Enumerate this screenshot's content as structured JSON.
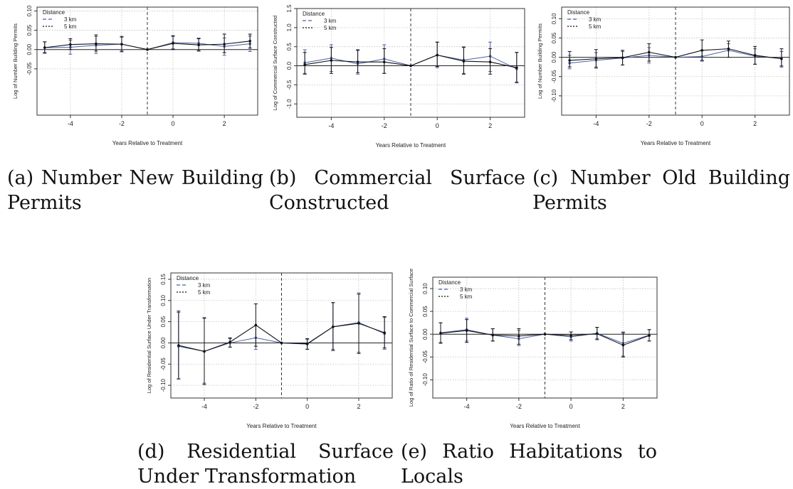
{
  "colors": {
    "three_km": "#4a5fa8",
    "five_km": "#111111",
    "grid": "#bfbfbf"
  },
  "chart_data": [
    {
      "type": "line",
      "caption": "(a) Number New Building Permits",
      "ylabel": "Log of Number Building Permits",
      "xlabel": "Years Relative to Treatment",
      "legend_title": "Distance",
      "legend_position": "top-left",
      "xlim": [
        -5.3,
        3.3
      ],
      "ylim": [
        -0.17,
        0.11
      ],
      "x_ticks": [
        -4,
        -2,
        0,
        2
      ],
      "y_ticks": [
        -0.05,
        0.0,
        0.05,
        0.1
      ],
      "y_tick_labels": [
        "-0.05",
        "0.00",
        "0.05",
        "0.10"
      ],
      "treatment_line": -1,
      "grid": true,
      "x": [
        -5,
        -4,
        -3,
        -2,
        -1,
        0,
        1,
        2,
        3
      ],
      "series": [
        {
          "name": "3 km",
          "values": [
            0.005,
            0.006,
            0.011,
            0.014,
            0,
            0.018,
            0.016,
            0.008,
            0.015
          ],
          "lower": [
            -0.01,
            -0.012,
            -0.01,
            -0.006,
            0,
            0.002,
            -0.002,
            -0.015,
            -0.005
          ],
          "upper": [
            0.02,
            0.024,
            0.034,
            0.032,
            0,
            0.034,
            0.03,
            0.03,
            0.035
          ]
        },
        {
          "name": "5 km",
          "values": [
            0.005,
            0.013,
            0.015,
            0.014,
            0,
            0.016,
            0.012,
            0.014,
            0.022
          ],
          "lower": [
            -0.008,
            0.0,
            -0.004,
            -0.004,
            0,
            0.0,
            -0.004,
            -0.008,
            0.004
          ],
          "upper": [
            0.02,
            0.028,
            0.038,
            0.034,
            0,
            0.036,
            0.028,
            0.04,
            0.04
          ]
        }
      ]
    },
    {
      "type": "line",
      "caption": "(b) Commercial Surface Constructed",
      "ylabel": "Log of Commercial Surface Constructed",
      "xlabel": "Years Relative to Treatment",
      "legend_title": "Distance",
      "legend_position": "top-left",
      "xlim": [
        -5.3,
        3.3
      ],
      "ylim": [
        -1.35,
        1.5
      ],
      "x_ticks": [
        -4,
        -2,
        0,
        2
      ],
      "y_ticks": [
        -1.0,
        -0.5,
        0.0,
        0.5,
        1.0,
        1.5
      ],
      "y_tick_labels": [
        "-1.0",
        "-0.5",
        "0.0",
        "0.5",
        "1.0",
        "1.5"
      ],
      "treatment_line": -1,
      "grid": true,
      "x": [
        -5,
        -4,
        -3,
        -2,
        -1,
        0,
        1,
        2,
        3
      ],
      "series": [
        {
          "name": "3 km",
          "values": [
            0.08,
            0.2,
            0.05,
            0.18,
            0,
            0.28,
            0.15,
            0.25,
            -0.08
          ],
          "lower": [
            -0.2,
            -0.15,
            -0.22,
            -0.2,
            0,
            -0.05,
            -0.2,
            -0.15,
            -0.45
          ],
          "upper": [
            0.42,
            0.55,
            0.4,
            0.55,
            0,
            0.62,
            0.5,
            0.62,
            0.35
          ]
        },
        {
          "name": "5 km",
          "values": [
            0.03,
            0.14,
            0.1,
            0.1,
            0,
            0.28,
            0.12,
            0.1,
            -0.05
          ],
          "lower": [
            -0.22,
            -0.2,
            -0.18,
            -0.2,
            0,
            -0.02,
            -0.22,
            -0.22,
            -0.43
          ],
          "upper": [
            0.35,
            0.48,
            0.42,
            0.45,
            0,
            0.62,
            0.48,
            0.45,
            0.35
          ]
        }
      ]
    },
    {
      "type": "line",
      "caption": "(c) Number Old Building Permits",
      "ylabel": "Log of Number Building Permits",
      "xlabel": "Years Relative to Treatment",
      "legend_title": "Distance",
      "legend_position": "top-left",
      "xlim": [
        -5.3,
        3.3
      ],
      "ylim": [
        -0.15,
        0.13
      ],
      "x_ticks": [
        -4,
        -2,
        0,
        2
      ],
      "y_ticks": [
        -0.1,
        -0.05,
        0.0,
        0.05,
        0.1
      ],
      "y_tick_labels": [
        "-0.10",
        "-0.05",
        "0.00",
        "0.05",
        "0.10"
      ],
      "treatment_line": -1,
      "grid": true,
      "x": [
        -5,
        -4,
        -3,
        -2,
        -1,
        0,
        1,
        2,
        3
      ],
      "series": [
        {
          "name": "3 km",
          "values": [
            -0.015,
            -0.008,
            -0.002,
            0.005,
            0,
            0.002,
            0.018,
            0.003,
            -0.003
          ],
          "lower": [
            -0.03,
            -0.025,
            -0.02,
            -0.015,
            0,
            -0.01,
            0.0,
            -0.018,
            -0.022
          ],
          "upper": [
            0.005,
            0.012,
            0.015,
            0.025,
            0,
            0.018,
            0.035,
            0.022,
            0.015
          ]
        },
        {
          "name": "5 km",
          "values": [
            -0.008,
            -0.004,
            -0.001,
            0.013,
            0,
            0.018,
            0.022,
            0.005,
            -0.004
          ],
          "lower": [
            -0.025,
            -0.028,
            -0.02,
            -0.01,
            0,
            -0.008,
            0.0,
            -0.018,
            -0.025
          ],
          "upper": [
            0.015,
            0.02,
            0.018,
            0.035,
            0,
            0.045,
            0.042,
            0.028,
            0.022
          ]
        }
      ]
    },
    {
      "type": "line",
      "caption": "(d) Residential Surface Under Transformation",
      "ylabel": "Log of Residential Surface Under Transformation",
      "xlabel": "Years Relative to Treatment",
      "legend_title": "Distance",
      "legend_position": "top-left",
      "xlim": [
        -5.3,
        3.3
      ],
      "ylim": [
        -0.13,
        0.165
      ],
      "x_ticks": [
        -4,
        -2,
        0,
        2
      ],
      "y_ticks": [
        -0.1,
        -0.05,
        0.0,
        0.05,
        0.1,
        0.15
      ],
      "y_tick_labels": [
        "-0.10",
        "-0.05",
        "0.00",
        "0.05",
        "0.10",
        "0.15"
      ],
      "treatment_line": -1,
      "grid": true,
      "x": [
        -5,
        -4,
        -3,
        -2,
        -1,
        0,
        1,
        2,
        3
      ],
      "series": [
        {
          "name": "3 km",
          "values": [
            -0.008,
            -0.02,
            0.0,
            0.012,
            0,
            -0.003,
            0.038,
            0.048,
            0.022
          ],
          "lower": [
            -0.085,
            -0.095,
            -0.01,
            -0.015,
            0,
            -0.015,
            -0.015,
            -0.022,
            -0.015
          ],
          "upper": [
            0.072,
            0.06,
            0.01,
            0.04,
            0,
            0.008,
            0.095,
            0.118,
            0.06
          ]
        },
        {
          "name": "5 km",
          "values": [
            -0.006,
            -0.02,
            0.002,
            0.042,
            0,
            -0.002,
            0.038,
            0.046,
            0.024
          ],
          "lower": [
            -0.085,
            -0.098,
            -0.01,
            -0.008,
            0,
            -0.015,
            -0.018,
            -0.025,
            -0.012
          ],
          "upper": [
            0.075,
            0.058,
            0.012,
            0.092,
            0,
            0.01,
            0.095,
            0.115,
            0.062
          ]
        }
      ]
    },
    {
      "type": "line",
      "caption": "(e) Ratio Habitations to Locals",
      "ylabel": "Log of Ratio of Residential Surface to Commercial Surface",
      "xlabel": "Years Relative to Treatment",
      "legend_title": "Distance",
      "legend_position": "top-left",
      "xlim": [
        -5.3,
        3.3
      ],
      "ylim": [
        -0.14,
        0.125
      ],
      "x_ticks": [
        -4,
        -2,
        0,
        2
      ],
      "y_ticks": [
        -0.1,
        -0.05,
        0.0,
        0.05,
        0.1
      ],
      "y_tick_labels": [
        "-0.10",
        "-0.05",
        "0.00",
        "0.05",
        "0.10"
      ],
      "treatment_line": -1,
      "grid": true,
      "x": [
        -5,
        -4,
        -3,
        -2,
        -1,
        0,
        1,
        2,
        3
      ],
      "series": [
        {
          "name": "3 km",
          "values": [
            0.003,
            0.01,
            -0.002,
            -0.01,
            0,
            -0.006,
            0.002,
            -0.02,
            -0.002
          ],
          "lower": [
            -0.018,
            -0.015,
            -0.015,
            -0.025,
            0,
            -0.015,
            -0.01,
            -0.048,
            -0.015
          ],
          "upper": [
            0.025,
            0.035,
            0.012,
            0.008,
            0,
            0.005,
            0.015,
            0.005,
            0.01
          ]
        },
        {
          "name": "5 km",
          "values": [
            0.002,
            0.008,
            -0.002,
            -0.004,
            0,
            -0.003,
            0.001,
            -0.024,
            -0.003
          ],
          "lower": [
            -0.02,
            -0.018,
            -0.015,
            -0.022,
            0,
            -0.012,
            -0.012,
            -0.05,
            -0.015
          ],
          "upper": [
            0.025,
            0.032,
            0.012,
            0.012,
            0,
            0.005,
            0.015,
            0.003,
            0.01
          ]
        }
      ]
    }
  ]
}
